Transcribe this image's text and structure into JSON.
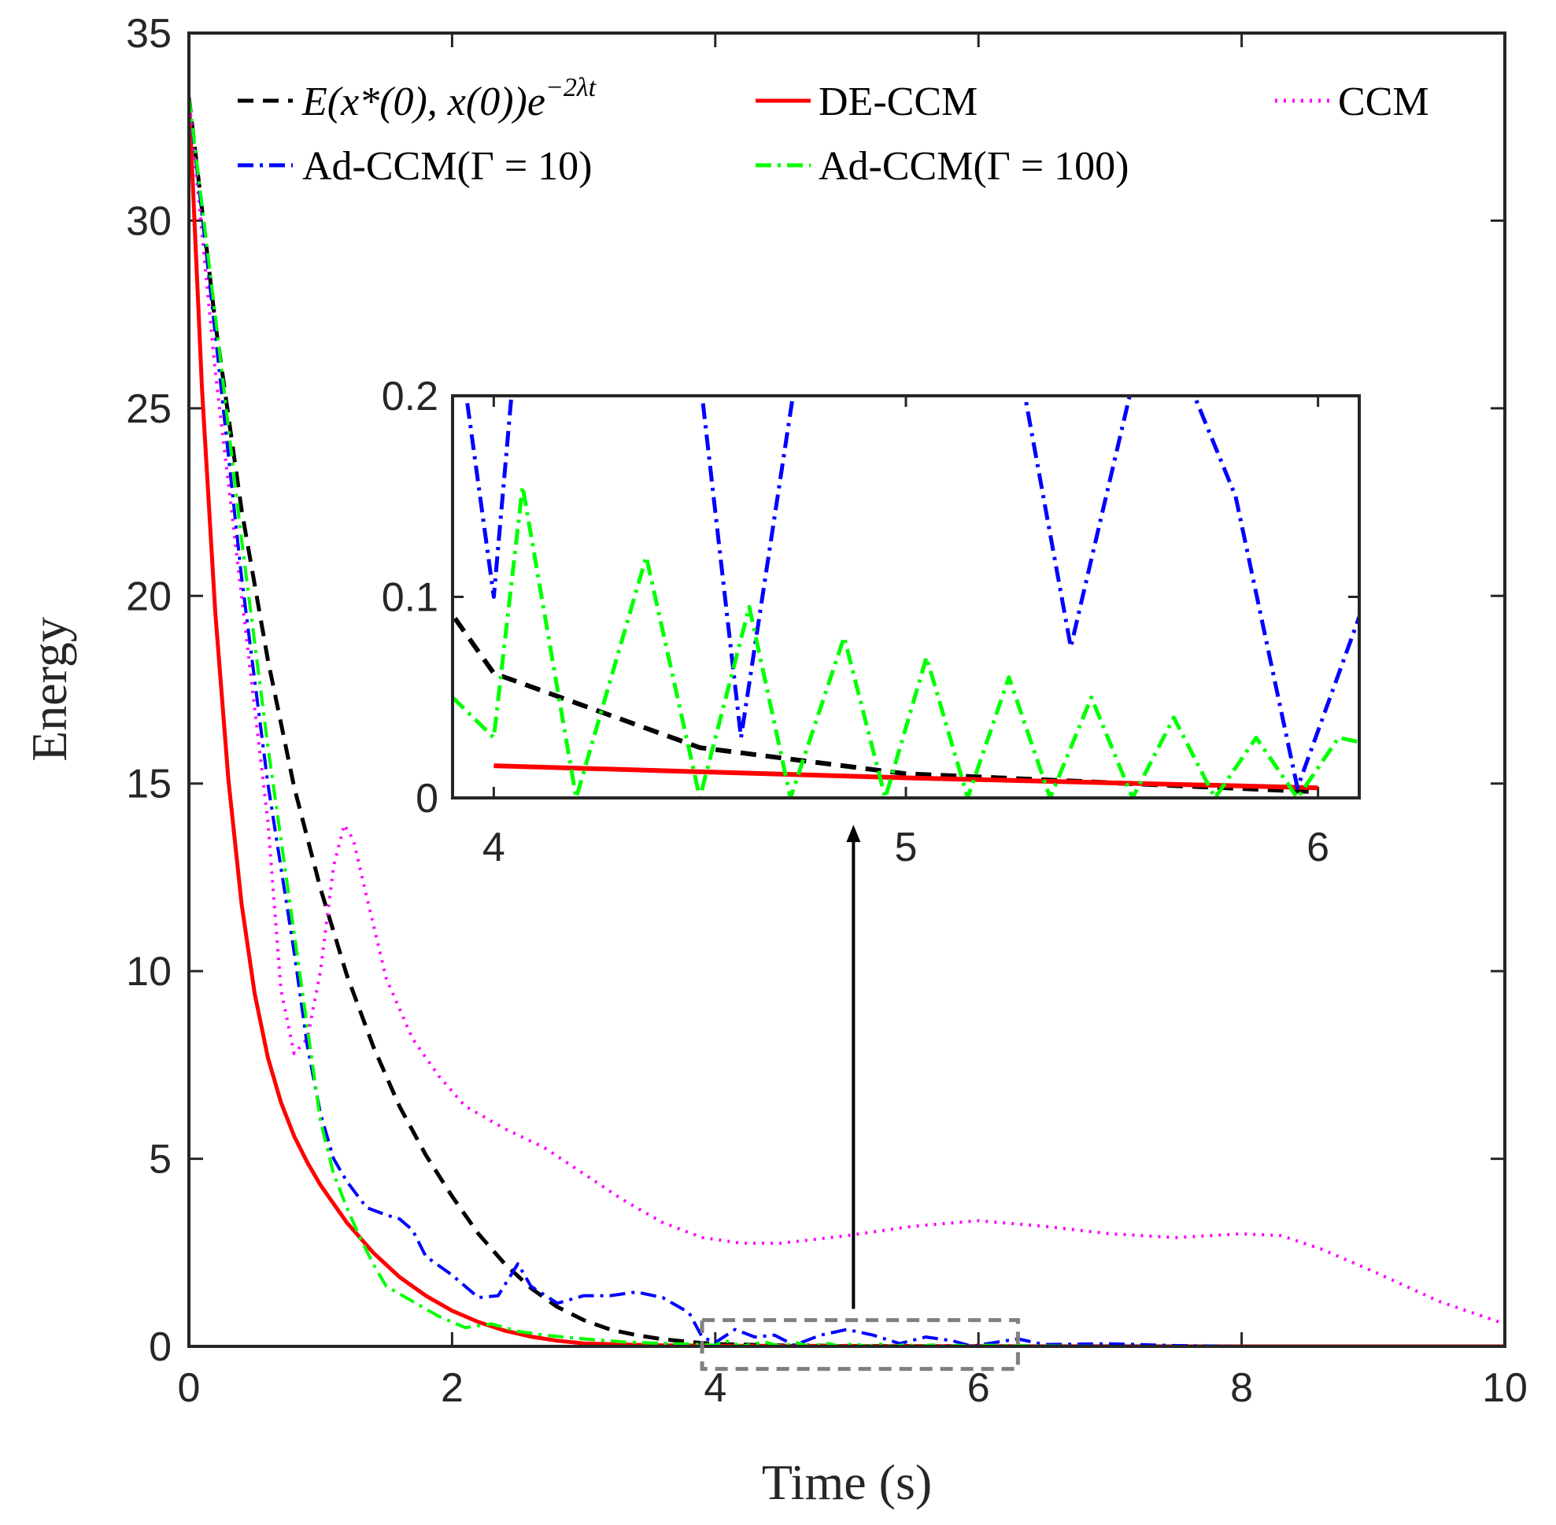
{
  "chart_data": {
    "type": "line",
    "xlabel": "Time (s)",
    "ylabel": "Energy",
    "xlim": [
      0,
      10
    ],
    "ylim": [
      0,
      35
    ],
    "x_ticks": [
      "0",
      "2",
      "4",
      "6",
      "8",
      "10"
    ],
    "y_ticks": [
      "0",
      "5",
      "10",
      "15",
      "20",
      "25",
      "30",
      "35"
    ],
    "legend": {
      "position": "top",
      "entries": [
        {
          "id": "bound",
          "label_main": "E(x*(0), x(0))e",
          "label_sup": "−2λt",
          "color": "#000000",
          "style": "dashed"
        },
        {
          "id": "de",
          "label": "DE-CCM",
          "color": "#ff0000",
          "style": "solid"
        },
        {
          "id": "ccm",
          "label": "CCM",
          "color": "#ff00ff",
          "style": "dotted"
        },
        {
          "id": "ad10",
          "label": "Ad-CCM(Γ = 10)",
          "color": "#0000ff",
          "style": "dash-dot"
        },
        {
          "id": "ad100",
          "label": "Ad-CCM(Γ = 100)",
          "color": "#00ff00",
          "style": "dash-dot"
        }
      ]
    },
    "series": [
      {
        "name": "bound",
        "color": "#000000",
        "points": [
          [
            0,
            33.3
          ],
          [
            0.2,
            27.3
          ],
          [
            0.4,
            22.3
          ],
          [
            0.6,
            18.3
          ],
          [
            0.8,
            14.9
          ],
          [
            1.0,
            12.2
          ],
          [
            1.2,
            9.9
          ],
          [
            1.4,
            8.0
          ],
          [
            1.6,
            6.4
          ],
          [
            1.8,
            5.1
          ],
          [
            2.0,
            4.0
          ],
          [
            2.2,
            3.0
          ],
          [
            2.4,
            2.2
          ],
          [
            2.6,
            1.55
          ],
          [
            2.8,
            1.05
          ],
          [
            3.0,
            0.7
          ],
          [
            3.2,
            0.45
          ],
          [
            3.4,
            0.3
          ],
          [
            3.6,
            0.19
          ],
          [
            3.8,
            0.12
          ],
          [
            4.0,
            0.062
          ],
          [
            4.5,
            0.025
          ],
          [
            5.0,
            0.012
          ],
          [
            6.0,
            0.003
          ],
          [
            7.0,
            0.001
          ],
          [
            8.0,
            0.0
          ],
          [
            10.0,
            0.0
          ]
        ]
      },
      {
        "name": "DE-CCM",
        "color": "#ff0000",
        "points": [
          [
            0,
            33.3
          ],
          [
            0.1,
            25.5
          ],
          [
            0.2,
            19.6
          ],
          [
            0.3,
            15.1
          ],
          [
            0.4,
            11.8
          ],
          [
            0.5,
            9.4
          ],
          [
            0.6,
            7.7
          ],
          [
            0.7,
            6.5
          ],
          [
            0.8,
            5.6
          ],
          [
            0.9,
            4.9
          ],
          [
            1.0,
            4.3
          ],
          [
            1.2,
            3.3
          ],
          [
            1.4,
            2.5
          ],
          [
            1.6,
            1.85
          ],
          [
            1.8,
            1.35
          ],
          [
            2.0,
            0.95
          ],
          [
            2.2,
            0.65
          ],
          [
            2.4,
            0.42
          ],
          [
            2.6,
            0.26
          ],
          [
            2.8,
            0.15
          ],
          [
            3.0,
            0.08
          ],
          [
            3.5,
            0.03
          ],
          [
            4.0,
            0.016
          ],
          [
            5.0,
            0.01
          ],
          [
            6.0,
            0.005
          ],
          [
            8.0,
            0.001
          ],
          [
            10.0,
            0.0
          ]
        ]
      },
      {
        "name": "CCM",
        "color": "#ff00ff",
        "points": [
          [
            0,
            33.3
          ],
          [
            0.2,
            26.0
          ],
          [
            0.4,
            20.0
          ],
          [
            0.6,
            14.0
          ],
          [
            0.7,
            9.5
          ],
          [
            0.8,
            7.8
          ],
          [
            0.9,
            8.2
          ],
          [
            1.0,
            10.0
          ],
          [
            1.1,
            12.8
          ],
          [
            1.18,
            13.9
          ],
          [
            1.25,
            13.5
          ],
          [
            1.35,
            12.0
          ],
          [
            1.5,
            9.8
          ],
          [
            1.7,
            8.2
          ],
          [
            1.9,
            7.2
          ],
          [
            2.1,
            6.4
          ],
          [
            2.4,
            5.8
          ],
          [
            2.7,
            5.3
          ],
          [
            3.0,
            4.6
          ],
          [
            3.3,
            3.9
          ],
          [
            3.6,
            3.3
          ],
          [
            3.9,
            2.9
          ],
          [
            4.2,
            2.75
          ],
          [
            4.5,
            2.75
          ],
          [
            5.0,
            2.95
          ],
          [
            5.5,
            3.2
          ],
          [
            6.0,
            3.35
          ],
          [
            6.5,
            3.2
          ],
          [
            7.0,
            3.0
          ],
          [
            7.5,
            2.9
          ],
          [
            8.0,
            3.0
          ],
          [
            8.3,
            2.95
          ],
          [
            8.6,
            2.6
          ],
          [
            9.0,
            2.0
          ],
          [
            9.5,
            1.2
          ],
          [
            10.0,
            0.6
          ]
        ]
      },
      {
        "name": "Ad-CCM(Γ = 10)",
        "color": "#0000ff",
        "points": [
          [
            0,
            33.3
          ],
          [
            0.2,
            27.0
          ],
          [
            0.4,
            20.5
          ],
          [
            0.6,
            15.0
          ],
          [
            0.8,
            10.5
          ],
          [
            0.9,
            8.0
          ],
          [
            1.0,
            6.2
          ],
          [
            1.1,
            5.0
          ],
          [
            1.2,
            4.4
          ],
          [
            1.35,
            3.7
          ],
          [
            1.5,
            3.5
          ],
          [
            1.6,
            3.4
          ],
          [
            1.7,
            3.1
          ],
          [
            1.8,
            2.4
          ],
          [
            2.0,
            1.9
          ],
          [
            2.2,
            1.3
          ],
          [
            2.35,
            1.35
          ],
          [
            2.5,
            2.2
          ],
          [
            2.6,
            1.6
          ],
          [
            2.8,
            1.15
          ],
          [
            3.0,
            1.35
          ],
          [
            3.2,
            1.35
          ],
          [
            3.4,
            1.45
          ],
          [
            3.6,
            1.3
          ],
          [
            3.8,
            0.9
          ],
          [
            3.9,
            0.25
          ],
          [
            4.0,
            0.1
          ],
          [
            4.15,
            0.45
          ],
          [
            4.3,
            0.25
          ],
          [
            4.45,
            0.3
          ],
          [
            4.6,
            0.03
          ],
          [
            4.8,
            0.3
          ],
          [
            5.0,
            0.45
          ],
          [
            5.2,
            0.3
          ],
          [
            5.4,
            0.075
          ],
          [
            5.6,
            0.25
          ],
          [
            5.8,
            0.15
          ],
          [
            5.95,
            0.005
          ],
          [
            6.1,
            0.09
          ],
          [
            6.3,
            0.2
          ],
          [
            6.5,
            0.05
          ],
          [
            7.0,
            0.07
          ],
          [
            7.5,
            0.02
          ],
          [
            8.0,
            0.0
          ],
          [
            10.0,
            0.0
          ]
        ]
      },
      {
        "name": "Ad-CCM(Γ = 100)",
        "color": "#00ff00",
        "points": [
          [
            0,
            33.3
          ],
          [
            0.2,
            27.5
          ],
          [
            0.4,
            21.5
          ],
          [
            0.6,
            16.0
          ],
          [
            0.8,
            11.0
          ],
          [
            0.9,
            8.5
          ],
          [
            1.0,
            6.0
          ],
          [
            1.1,
            4.6
          ],
          [
            1.2,
            3.7
          ],
          [
            1.3,
            2.9
          ],
          [
            1.4,
            2.2
          ],
          [
            1.5,
            1.6
          ],
          [
            1.7,
            1.2
          ],
          [
            1.9,
            0.8
          ],
          [
            2.1,
            0.5
          ],
          [
            2.3,
            0.6
          ],
          [
            2.5,
            0.4
          ],
          [
            2.7,
            0.3
          ],
          [
            3.0,
            0.2
          ],
          [
            3.3,
            0.12
          ],
          [
            3.6,
            0.08
          ],
          [
            3.9,
            0.05
          ],
          [
            4.0,
            0.03
          ],
          [
            4.07,
            0.155
          ],
          [
            4.2,
            0.0
          ],
          [
            4.37,
            0.12
          ],
          [
            4.5,
            0.0
          ],
          [
            4.62,
            0.095
          ],
          [
            4.72,
            0.0
          ],
          [
            4.85,
            0.08
          ],
          [
            4.95,
            0.0
          ],
          [
            5.05,
            0.07
          ],
          [
            5.15,
            0.0
          ],
          [
            5.25,
            0.06
          ],
          [
            5.35,
            0.0
          ],
          [
            5.45,
            0.05
          ],
          [
            5.55,
            0.0
          ],
          [
            5.65,
            0.04
          ],
          [
            5.75,
            0.0
          ],
          [
            5.85,
            0.03
          ],
          [
            5.95,
            0.0
          ],
          [
            6.05,
            0.03
          ],
          [
            6.5,
            0.01
          ],
          [
            7.0,
            0.0
          ],
          [
            10.0,
            0.0
          ]
        ]
      }
    ],
    "inset": {
      "xlim": [
        3.9,
        6.1
      ],
      "ylim": [
        0,
        0.2
      ],
      "x_ticks": [
        "4",
        "5",
        "6"
      ],
      "y_ticks": [
        "0",
        "0.1",
        "0.2"
      ],
      "zoom_box": {
        "x_range": [
          3.9,
          6.3
        ],
        "y_range": [
          -0.6,
          0.7
        ]
      },
      "arrow": {
        "from": [
          5.05,
          1.0
        ],
        "to": [
          5.05,
          13.9
        ]
      }
    }
  }
}
